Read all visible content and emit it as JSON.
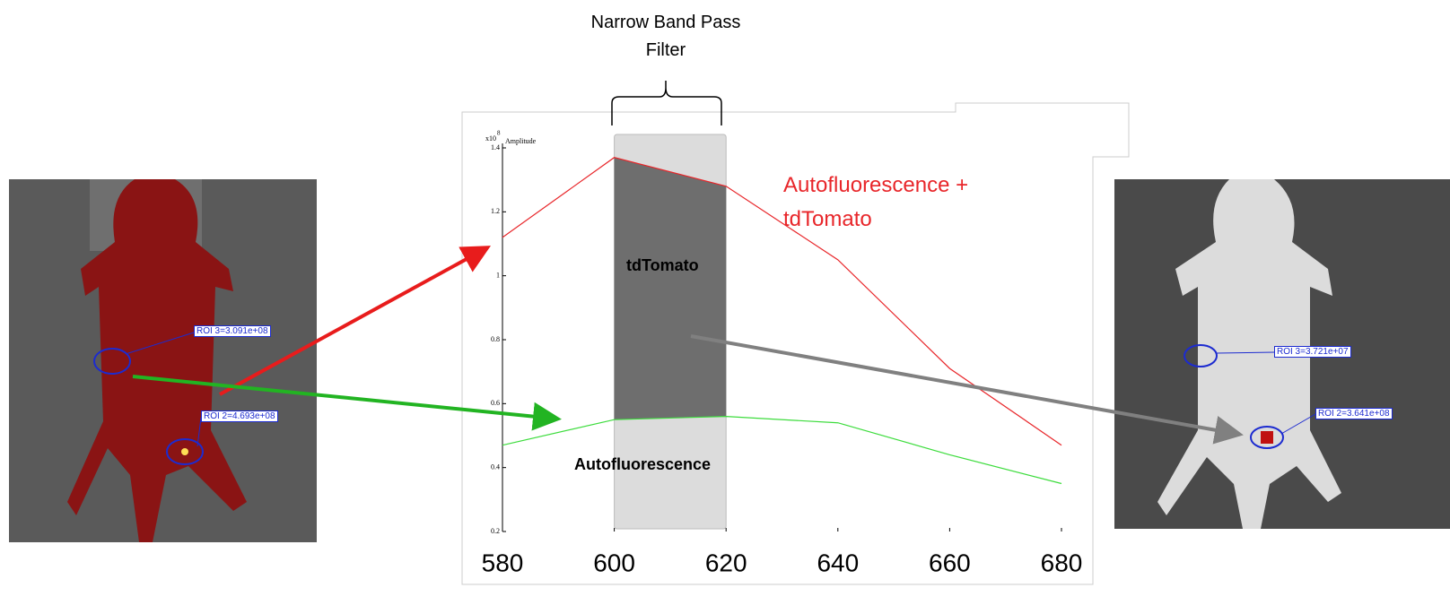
{
  "chart_data": {
    "type": "line",
    "band_label": "Narrow Band Pass Filter",
    "y_unit_base": "x10",
    "y_unit_exponent": "8",
    "ylabel": "Amplitude",
    "x": [
      580,
      600,
      620,
      640,
      660,
      680
    ],
    "xlim": [
      580,
      680
    ],
    "xticks": [
      580,
      600,
      620,
      640,
      660,
      680
    ],
    "ylim": [
      0.2,
      1.4
    ],
    "yticks": [
      0.2,
      0.4,
      0.6,
      0.8,
      1,
      1.2,
      1.4
    ],
    "band": [
      600,
      620
    ],
    "series": [
      {
        "name": "Autofluorescence + tdTomato",
        "color": "#e8262a",
        "values": [
          1.12,
          1.37,
          1.28,
          1.05,
          0.71,
          0.47
        ]
      },
      {
        "name": "Autofluorescence",
        "color": "#3ddc3d",
        "values": [
          0.47,
          0.55,
          0.56,
          0.54,
          0.44,
          0.35
        ]
      }
    ],
    "band_annotations": [
      "tdTomato",
      "Autofluorescence"
    ],
    "left_image_rois": [
      "ROI 3=3.091e+08",
      "ROI 2=4.693e+08"
    ],
    "right_image_rois": [
      "ROI 3=3.721e+07",
      "ROI 2=3.641e+08"
    ]
  }
}
